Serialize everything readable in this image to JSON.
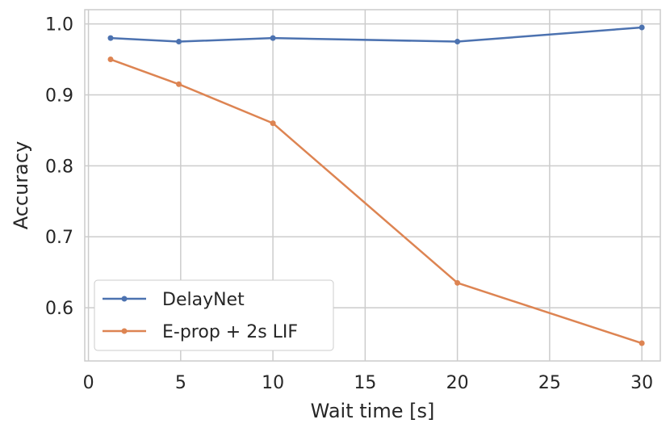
{
  "chart_data": {
    "type": "line",
    "title": "",
    "xlabel": "Wait time [s]",
    "ylabel": "Accuracy",
    "xlim": [
      -0.2,
      31
    ],
    "ylim": [
      0.525,
      1.02
    ],
    "x_ticks": [
      0,
      5,
      10,
      15,
      20,
      25,
      30
    ],
    "y_ticks": [
      0.6,
      0.7,
      0.8,
      0.9,
      1.0
    ],
    "y_tick_labels": [
      "0.6",
      "0.7",
      "0.8",
      "0.9",
      "1.0"
    ],
    "grid": true,
    "legend_position": "bottom-left",
    "series": [
      {
        "name": "DelayNet",
        "color": "#4c72b0",
        "x": [
          1.2,
          4.9,
          10,
          20,
          30
        ],
        "y": [
          0.98,
          0.975,
          0.98,
          0.975,
          0.995
        ]
      },
      {
        "name": "E-prop + 2s LIF",
        "color": "#dd8452",
        "x": [
          1.2,
          4.9,
          10,
          20,
          30
        ],
        "y": [
          0.95,
          0.915,
          0.86,
          0.635,
          0.55
        ]
      }
    ]
  }
}
